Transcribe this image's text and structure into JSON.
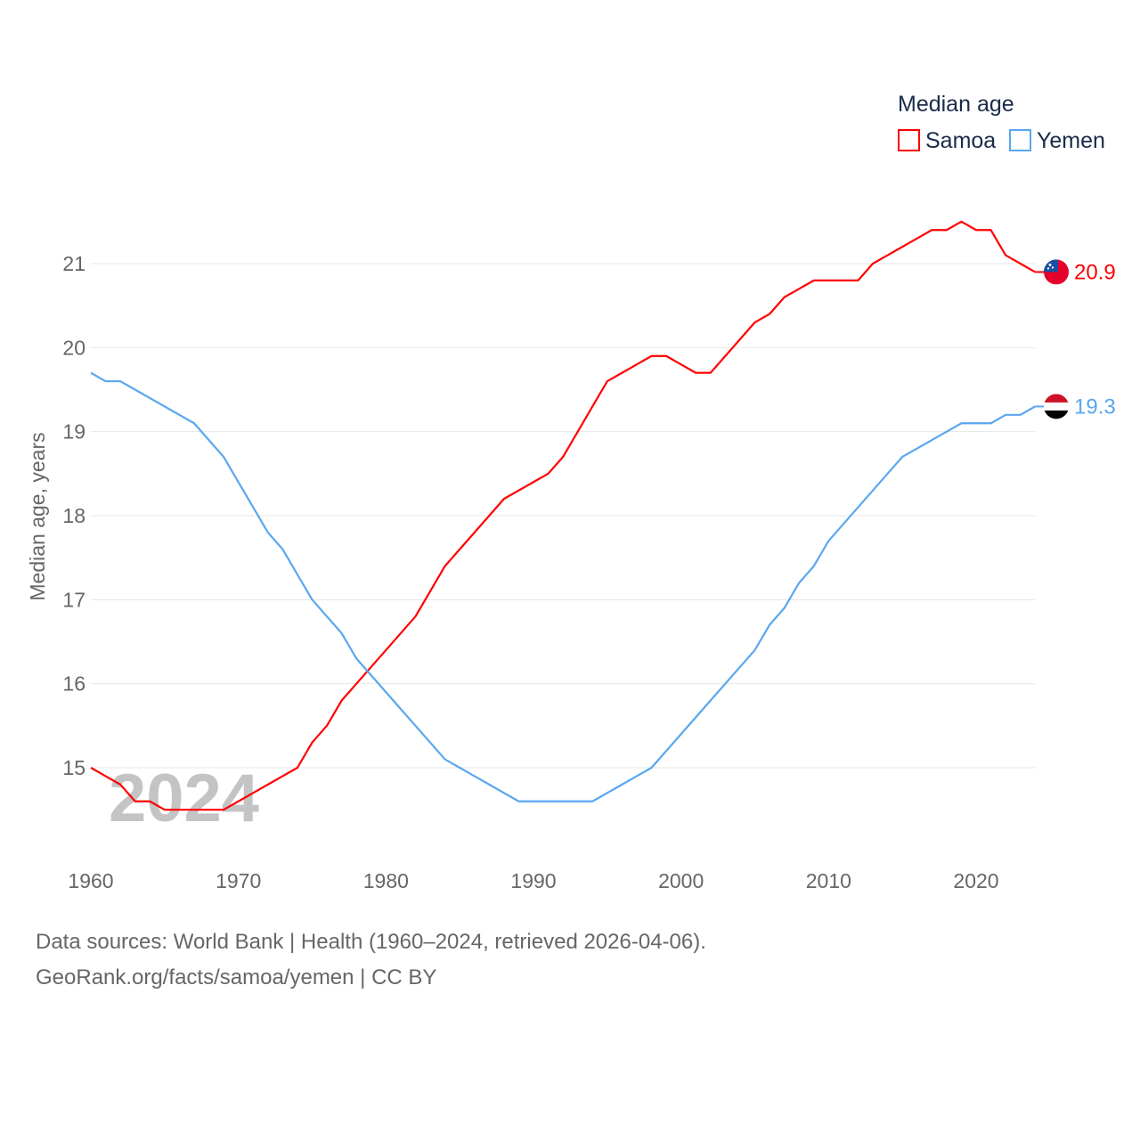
{
  "chart_data": {
    "type": "line",
    "legend_title": "Median age",
    "legend_position": "top-right",
    "ylabel": "Median age, years",
    "xlabel": "",
    "ylim": [
      14.3,
      21.8
    ],
    "xlim": [
      1960,
      2024
    ],
    "yticks": [
      15,
      16,
      17,
      18,
      19,
      20,
      21
    ],
    "xticks": [
      1960,
      1970,
      1980,
      1990,
      2000,
      2010,
      2020
    ],
    "grid": true,
    "year_watermark": "2024",
    "x": [
      1960,
      1961,
      1962,
      1963,
      1964,
      1965,
      1966,
      1967,
      1968,
      1969,
      1970,
      1971,
      1972,
      1973,
      1974,
      1975,
      1976,
      1977,
      1978,
      1979,
      1980,
      1981,
      1982,
      1983,
      1984,
      1985,
      1986,
      1987,
      1988,
      1989,
      1990,
      1991,
      1992,
      1993,
      1994,
      1995,
      1996,
      1997,
      1998,
      1999,
      2000,
      2001,
      2002,
      2003,
      2004,
      2005,
      2006,
      2007,
      2008,
      2009,
      2010,
      2011,
      2012,
      2013,
      2014,
      2015,
      2016,
      2017,
      2018,
      2019,
      2020,
      2021,
      2022,
      2023,
      2024
    ],
    "series": [
      {
        "name": "Samoa",
        "color": "#ff0000",
        "end_label": "20.9",
        "values": [
          15.0,
          14.9,
          14.8,
          14.6,
          14.6,
          14.5,
          14.5,
          14.5,
          14.5,
          14.5,
          14.6,
          14.7,
          14.8,
          14.9,
          15.0,
          15.3,
          15.5,
          15.8,
          16.0,
          16.2,
          16.4,
          16.6,
          16.8,
          17.1,
          17.4,
          17.6,
          17.8,
          18.0,
          18.2,
          18.3,
          18.4,
          18.5,
          18.7,
          19.0,
          19.3,
          19.6,
          19.7,
          19.8,
          19.9,
          19.9,
          19.8,
          19.7,
          19.7,
          19.9,
          20.1,
          20.3,
          20.4,
          20.6,
          20.7,
          20.8,
          20.8,
          20.8,
          20.8,
          21.0,
          21.1,
          21.2,
          21.3,
          21.4,
          21.4,
          21.5,
          21.4,
          21.4,
          21.1,
          21.0,
          20.9
        ]
      },
      {
        "name": "Yemen",
        "color": "#5aa7f0",
        "end_label": "19.3",
        "values": [
          19.7,
          19.6,
          19.6,
          19.5,
          19.4,
          19.3,
          19.2,
          19.1,
          18.9,
          18.7,
          18.4,
          18.1,
          17.8,
          17.6,
          17.3,
          17.0,
          16.8,
          16.6,
          16.3,
          16.1,
          15.9,
          15.7,
          15.5,
          15.3,
          15.1,
          15.0,
          14.9,
          14.8,
          14.7,
          14.6,
          14.6,
          14.6,
          14.6,
          14.6,
          14.6,
          14.7,
          14.8,
          14.9,
          15.0,
          15.2,
          15.4,
          15.6,
          15.8,
          16.0,
          16.2,
          16.4,
          16.7,
          16.9,
          17.2,
          17.4,
          17.7,
          17.9,
          18.1,
          18.3,
          18.5,
          18.7,
          18.8,
          18.9,
          19.0,
          19.1,
          19.1,
          19.1,
          19.2,
          19.2,
          19.3
        ]
      }
    ]
  },
  "footer": {
    "line1": "Data sources: World Bank | Health (1960–2024, retrieved 2026-04-06).",
    "line2": "GeoRank.org/facts/samoa/yemen | CC BY"
  }
}
